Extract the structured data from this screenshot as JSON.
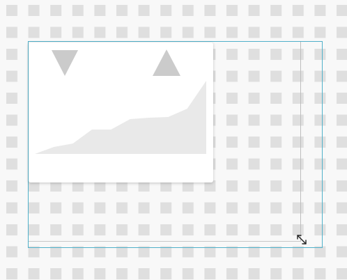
{
  "canvas": {
    "background_color": "#f8f8f8",
    "tile_color": "#dfdfdf"
  },
  "selection": {
    "frame_color": "#4fb0c9",
    "guide_color": "#bdbdbd"
  },
  "widget": {
    "background": "#ffffff",
    "placeholder_icon_color": "#cbcbcb",
    "chart_fill_color": "#e9e9e9",
    "icons": [
      "triangle-down-icon",
      "triangle-up-icon"
    ],
    "chart": {
      "type": "area",
      "values": [
        0,
        10,
        15,
        35,
        35,
        50,
        52,
        53,
        65,
        105
      ]
    }
  },
  "resize_handle": {
    "icon": "diagonal-resize-icon"
  }
}
